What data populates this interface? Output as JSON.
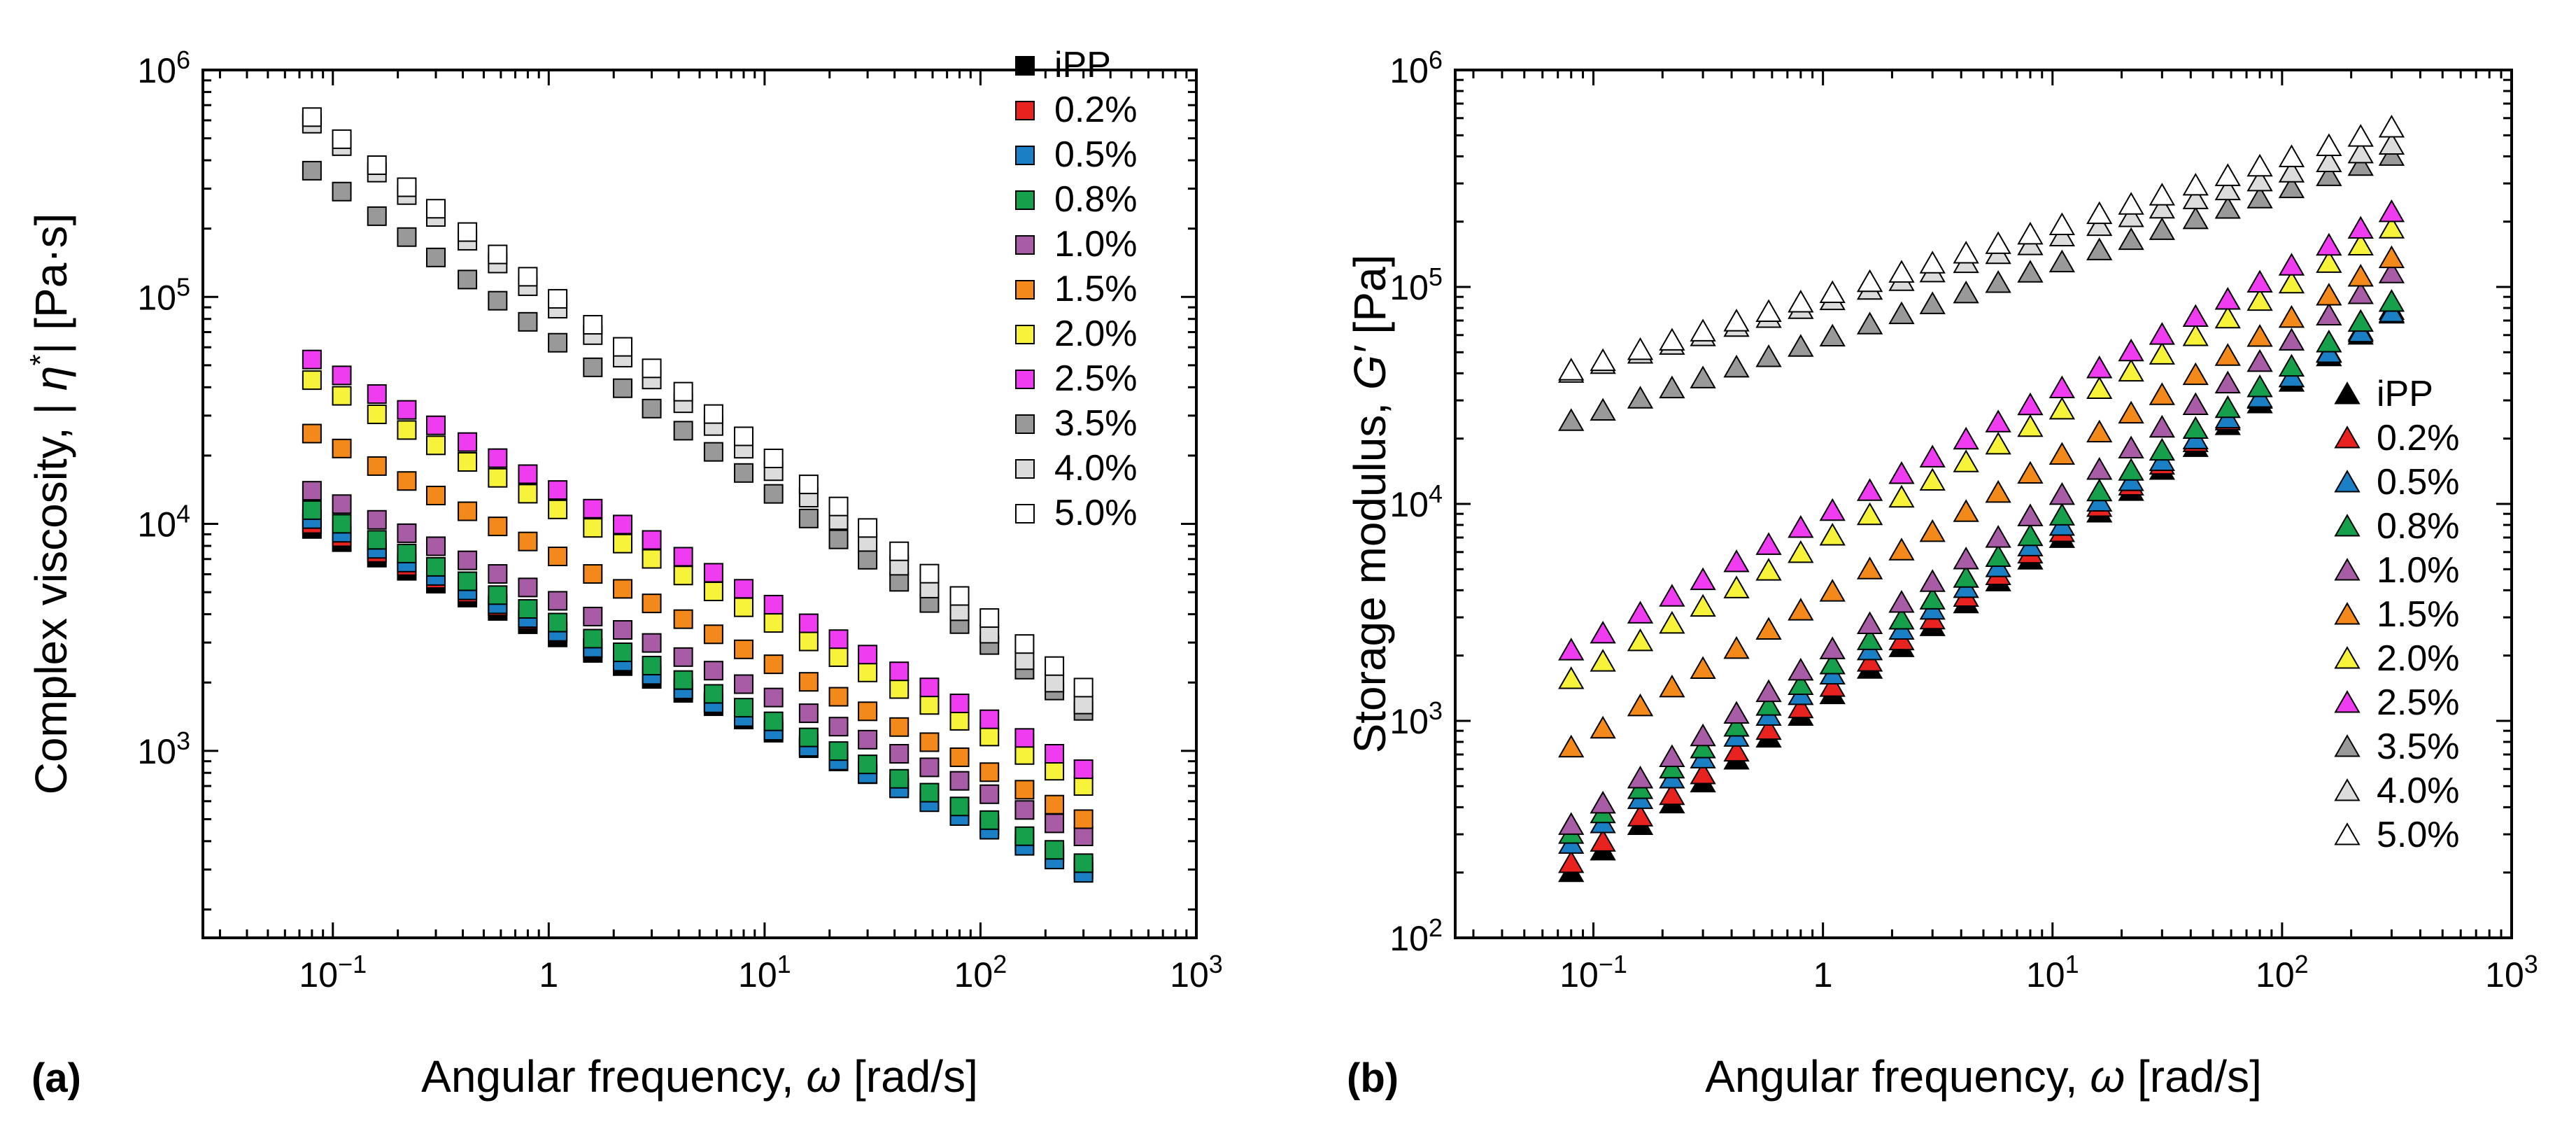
{
  "chart_data": [
    {
      "panel": "(a)",
      "type": "scatter",
      "xscale": "log",
      "yscale": "log",
      "xlim": [
        0.025,
        1000
      ],
      "ylim": [
        150,
        1000000
      ],
      "marker": "square",
      "xlabel_main": "Angular frequency, ",
      "xlabel_symbol": "ω",
      "xlabel_unit": " [rad/s]",
      "ylabel_main": "Complex viscosity, | ",
      "ylabel_symbol": "η",
      "ylabel_sup": "*",
      "ylabel_unit": "| [Pa·s]",
      "xticks": [
        {
          "base": "10",
          "exp": "−1"
        },
        {
          "base": "1",
          "exp": ""
        },
        {
          "base": "10",
          "exp": "1"
        },
        {
          "base": "10",
          "exp": "2"
        },
        {
          "base": "10",
          "exp": "3"
        }
      ],
      "yticks": [
        {
          "base": "10",
          "exp": "3"
        },
        {
          "base": "10",
          "exp": "4"
        },
        {
          "base": "10",
          "exp": "5"
        },
        {
          "base": "10",
          "exp": "6"
        }
      ],
      "legend_position": "top-right",
      "x": [
        0.08,
        0.11,
        0.16,
        0.22,
        0.3,
        0.42,
        0.58,
        0.8,
        1.1,
        1.6,
        2.2,
        3.0,
        4.2,
        5.8,
        8.0,
        11,
        16,
        22,
        30,
        42,
        58,
        80,
        110,
        160,
        220,
        300
      ],
      "series": [
        {
          "name": "iPP",
          "y_start": 9500,
          "y_end": 300
        },
        {
          "name": "0.2%",
          "y_start": 10000,
          "y_end": 310
        },
        {
          "name": "0.5%",
          "y_start": 10500,
          "y_end": 290
        },
        {
          "name": "0.8%",
          "y_start": 11500,
          "y_end": 320
        },
        {
          "name": "1.0%",
          "y_start": 14000,
          "y_end": 420
        },
        {
          "name": "1.5%",
          "y_start": 25000,
          "y_end": 500
        },
        {
          "name": "2.0%",
          "y_start": 43000,
          "y_end": 700
        },
        {
          "name": "2.5%",
          "y_start": 53000,
          "y_end": 830
        },
        {
          "name": "3.5%",
          "y_start": 360000,
          "y_end": 1500
        },
        {
          "name": "4.0%",
          "y_start": 580000,
          "y_end": 1600
        },
        {
          "name": "5.0%",
          "y_start": 620000,
          "y_end": 1900
        }
      ]
    },
    {
      "panel": "(b)",
      "type": "scatter",
      "xscale": "log",
      "yscale": "log",
      "xlim": [
        0.025,
        1000
      ],
      "ylim": [
        100,
        1000000
      ],
      "marker": "triangle",
      "xlabel_main": "Angular frequency, ",
      "xlabel_symbol": "ω",
      "xlabel_unit": " [rad/s]",
      "ylabel_main": "Storage modulus, ",
      "ylabel_symbol": "G′",
      "ylabel_unit": " [Pa]",
      "xticks": [
        {
          "base": "10",
          "exp": "−1"
        },
        {
          "base": "1",
          "exp": ""
        },
        {
          "base": "10",
          "exp": "1"
        },
        {
          "base": "10",
          "exp": "2"
        },
        {
          "base": "10",
          "exp": "3"
        }
      ],
      "yticks": [
        {
          "base": "10",
          "exp": "2"
        },
        {
          "base": "10",
          "exp": "3"
        },
        {
          "base": "10",
          "exp": "4"
        },
        {
          "base": "10",
          "exp": "5"
        },
        {
          "base": "10",
          "exp": "6"
        }
      ],
      "legend_position": "bottom-right",
      "x": [
        0.08,
        0.11,
        0.16,
        0.22,
        0.3,
        0.42,
        0.58,
        0.8,
        1.1,
        1.6,
        2.2,
        3.0,
        4.2,
        5.8,
        8.0,
        11,
        16,
        22,
        30,
        42,
        58,
        80,
        110,
        160,
        220,
        300
      ],
      "series": [
        {
          "name": "iPP",
          "y_start": 200,
          "y_end": 75000
        },
        {
          "name": "0.2%",
          "y_start": 220,
          "y_end": 78000
        },
        {
          "name": "0.5%",
          "y_start": 270,
          "y_end": 76000
        },
        {
          "name": "0.8%",
          "y_start": 300,
          "y_end": 85000
        },
        {
          "name": "1.0%",
          "y_start": 330,
          "y_end": 115000
        },
        {
          "name": "1.5%",
          "y_start": 750,
          "y_end": 135000
        },
        {
          "name": "2.0%",
          "y_start": 1550,
          "y_end": 185000
        },
        {
          "name": "2.5%",
          "y_start": 2100,
          "y_end": 220000
        },
        {
          "name": "3.5%",
          "y_start": 24000,
          "y_end": 400000
        },
        {
          "name": "4.0%",
          "y_start": 40000,
          "y_end": 450000
        },
        {
          "name": "5.0%",
          "y_start": 41000,
          "y_end": 540000
        }
      ]
    }
  ],
  "series_colors": [
    "#000000",
    "#e8231f",
    "#1a7fc4",
    "#16a04c",
    "#a85ca6",
    "#f3891a",
    "#f7f33a",
    "#f03cf0",
    "#999999",
    "#dcdcdc",
    "#ffffff"
  ]
}
